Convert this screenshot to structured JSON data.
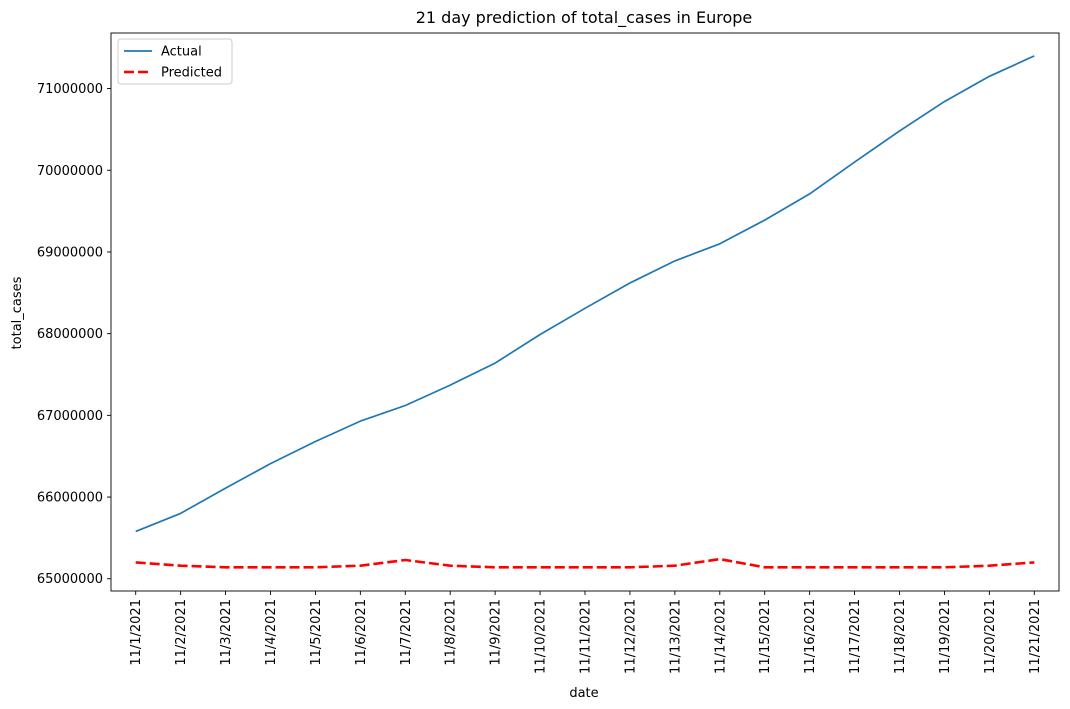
{
  "chart_data": {
    "type": "line",
    "title": "21 day prediction of total_cases in Europe",
    "xlabel": "date",
    "ylabel": "total_cases",
    "categories": [
      "11/1/2021",
      "11/2/2021",
      "11/3/2021",
      "11/4/2021",
      "11/5/2021",
      "11/6/2021",
      "11/7/2021",
      "11/8/2021",
      "11/9/2021",
      "11/10/2021",
      "11/11/2021",
      "11/12/2021",
      "11/13/2021",
      "11/14/2021",
      "11/15/2021",
      "11/16/2021",
      "11/17/2021",
      "11/18/2021",
      "11/19/2021",
      "11/20/2021",
      "11/21/2021"
    ],
    "yticks": [
      65000000,
      66000000,
      67000000,
      68000000,
      69000000,
      70000000,
      71000000
    ],
    "ylim": [
      64850000,
      71680000
    ],
    "grid": false,
    "legend_position": "top-left",
    "series": [
      {
        "name": "Actual",
        "color": "#1f77b4",
        "style": "solid",
        "values": [
          65580000,
          65800000,
          66110000,
          66410000,
          66680000,
          66930000,
          67120000,
          67370000,
          67640000,
          67990000,
          68310000,
          68620000,
          68890000,
          69100000,
          69390000,
          69710000,
          70100000,
          70480000,
          70840000,
          71150000,
          71400000
        ]
      },
      {
        "name": "Predicted",
        "color": "#ff0000",
        "style": "dashed",
        "values": [
          65200000,
          65160000,
          65140000,
          65140000,
          65140000,
          65160000,
          65230000,
          65160000,
          65140000,
          65140000,
          65140000,
          65140000,
          65160000,
          65240000,
          65140000,
          65140000,
          65140000,
          65140000,
          65140000,
          65160000,
          65200000
        ]
      }
    ]
  }
}
